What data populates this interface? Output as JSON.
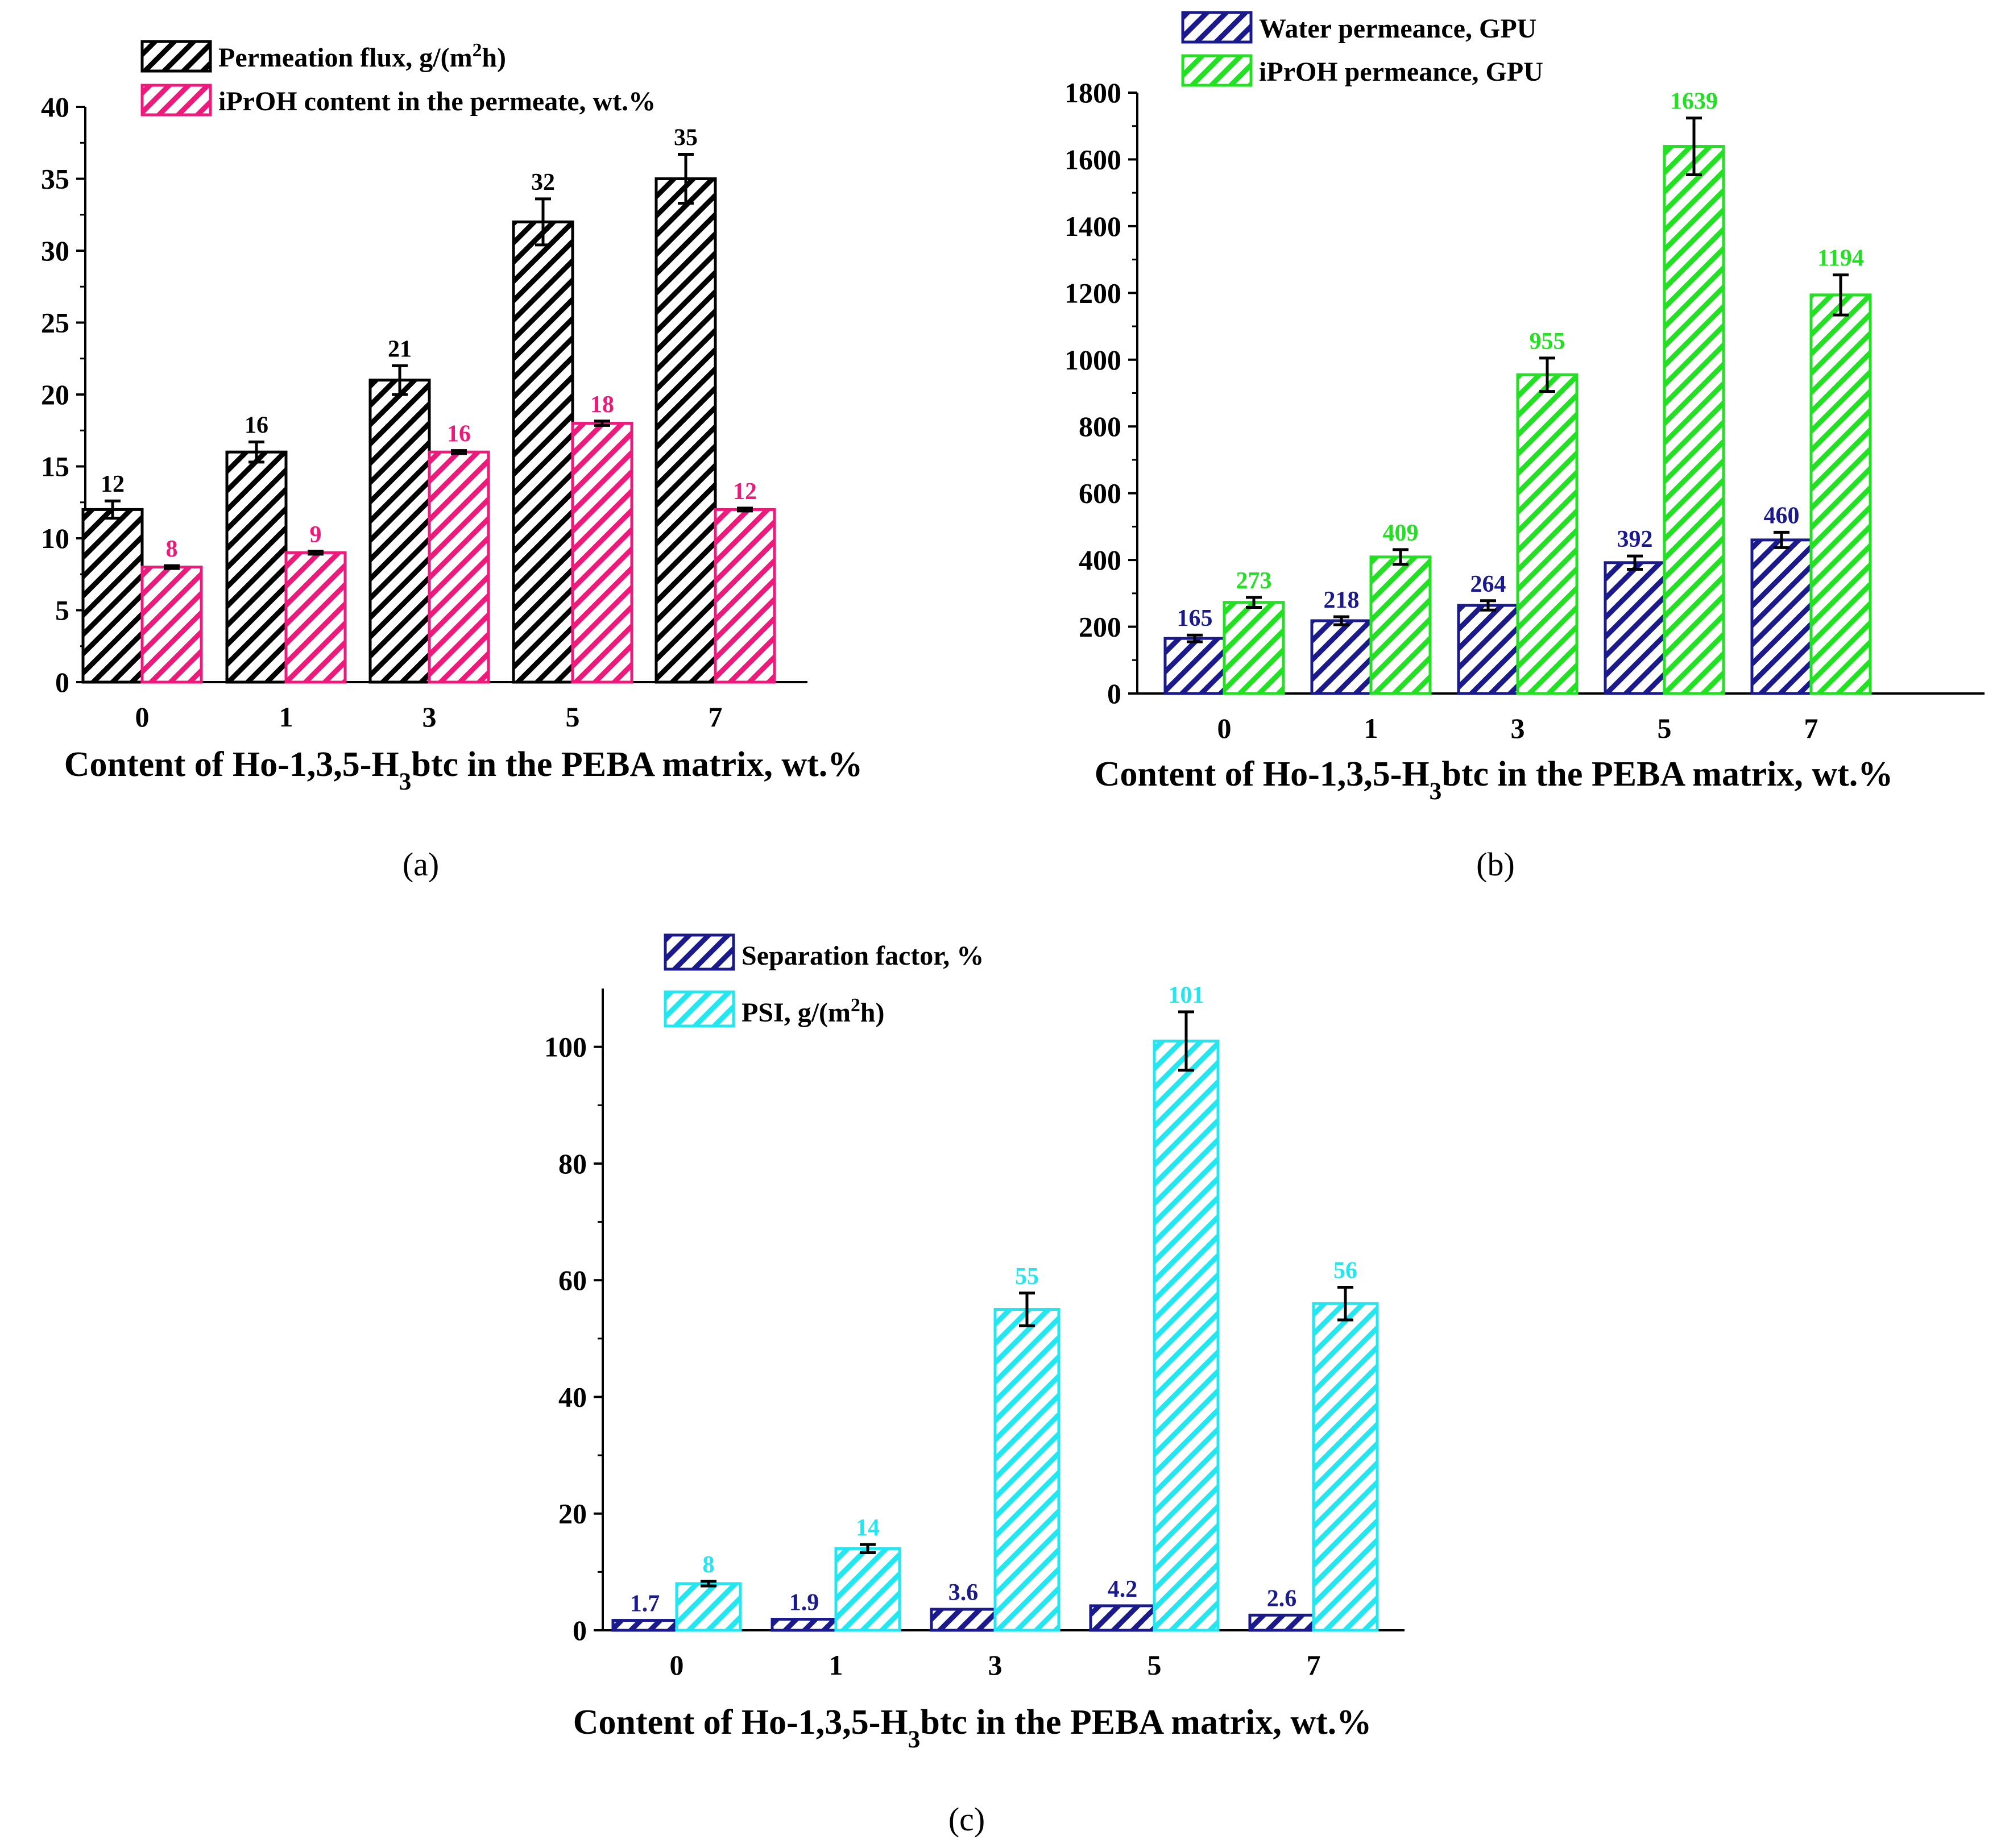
{
  "chart_data": [
    {
      "id": "a",
      "type": "bar",
      "caption": "(a)",
      "categories": [
        "0",
        "1",
        "3",
        "5",
        "7"
      ],
      "xlabel": "Content of Ho-1,3,5-H3btc in the PEBA matrix, wt.%",
      "xlabel_parts": [
        "Content of Ho-1,3,5-H",
        "3",
        "btc in the PEBA matrix, wt.%"
      ],
      "ylim": [
        0,
        40
      ],
      "yticks": [
        0,
        5,
        10,
        15,
        20,
        25,
        30,
        35,
        40
      ],
      "legend_position": "top",
      "series": [
        {
          "name": "Permeation flux, g/(m2h)",
          "legend_parts": [
            "Permeation flux, g/(m",
            "2",
            "h)"
          ],
          "color": "#000000",
          "label_color": "#000000",
          "values": [
            12,
            16,
            21,
            32,
            35
          ],
          "errors": [
            0.6,
            0.7,
            1.0,
            1.6,
            1.7
          ],
          "labels": [
            "12",
            "16",
            "21",
            "32",
            "35"
          ]
        },
        {
          "name": "iPrOH content in the permeate, wt.%",
          "legend_parts": [
            "iPrOH content in the permeate, wt.%"
          ],
          "color": "#ee1a7b",
          "label_color": "#ee1a7b",
          "values": [
            8,
            9,
            16,
            18,
            12
          ],
          "errors": [
            0.1,
            0.1,
            0.1,
            0.15,
            0.1
          ],
          "labels": [
            "8",
            "9",
            "16",
            "18",
            "12"
          ]
        }
      ]
    },
    {
      "id": "b",
      "type": "bar",
      "caption": "(b)",
      "categories": [
        "0",
        "1",
        "3",
        "5",
        "7"
      ],
      "xlabel": "Content of Ho-1,3,5-H3btc in the PEBA matrix, wt.%",
      "xlabel_parts": [
        "Content of Ho-1,3,5-H",
        "3",
        "btc in the PEBA matrix, wt.%"
      ],
      "ylim": [
        0,
        1800
      ],
      "yticks": [
        0,
        200,
        400,
        600,
        800,
        1000,
        1200,
        1400,
        1600,
        1800
      ],
      "legend_position": "top",
      "series": [
        {
          "name": "Water permeance, GPU",
          "legend_parts": [
            "Water permeance, GPU"
          ],
          "color": "#1a1a8c",
          "label_color": "#1a1a8c",
          "values": [
            165,
            218,
            264,
            392,
            460
          ],
          "errors": [
            10,
            12,
            14,
            20,
            23
          ],
          "labels": [
            "165",
            "218",
            "264",
            "392",
            "460"
          ]
        },
        {
          "name": "iPrOH permeance, GPU",
          "legend_parts": [
            "iPrOH permeance, GPU"
          ],
          "color": "#22e022",
          "label_color": "#22e022",
          "values": [
            273,
            409,
            955,
            1639,
            1194
          ],
          "errors": [
            15,
            22,
            50,
            85,
            60
          ],
          "labels": [
            "273",
            "409",
            "955",
            "1639",
            "1194"
          ]
        }
      ]
    },
    {
      "id": "c",
      "type": "bar",
      "caption": "(c)",
      "categories": [
        "0",
        "1",
        "3",
        "5",
        "7"
      ],
      "xlabel": "Content of Ho-1,3,5-H3btc in the PEBA matrix, wt.%",
      "xlabel_parts": [
        "Content of Ho-1,3,5-H",
        "3",
        "btc in the PEBA matrix, wt.%"
      ],
      "ylim": [
        0,
        110
      ],
      "yticks": [
        0,
        20,
        40,
        60,
        80,
        100
      ],
      "legend_position": "top",
      "series": [
        {
          "name": "Separation factor, %",
          "legend_parts": [
            "Separation factor, %"
          ],
          "color": "#1a1a8c",
          "label_color": "#1a1a8c",
          "values": [
            1.7,
            1.9,
            3.6,
            4.2,
            2.6
          ],
          "errors": [
            0,
            0,
            0,
            0,
            0
          ],
          "labels": [
            "1.7",
            "1.9",
            "3.6",
            "4.2",
            "2.6"
          ]
        },
        {
          "name": "PSI, g/(m2h)",
          "legend_parts": [
            "PSI, g/(m",
            "2",
            "h)"
          ],
          "color": "#22e6f0",
          "label_color": "#22e6f0",
          "values": [
            8,
            14,
            55,
            101,
            56
          ],
          "errors": [
            0.4,
            0.7,
            2.8,
            5,
            2.8
          ],
          "labels": [
            "8",
            "14",
            "55",
            "101",
            "56"
          ]
        }
      ]
    }
  ]
}
